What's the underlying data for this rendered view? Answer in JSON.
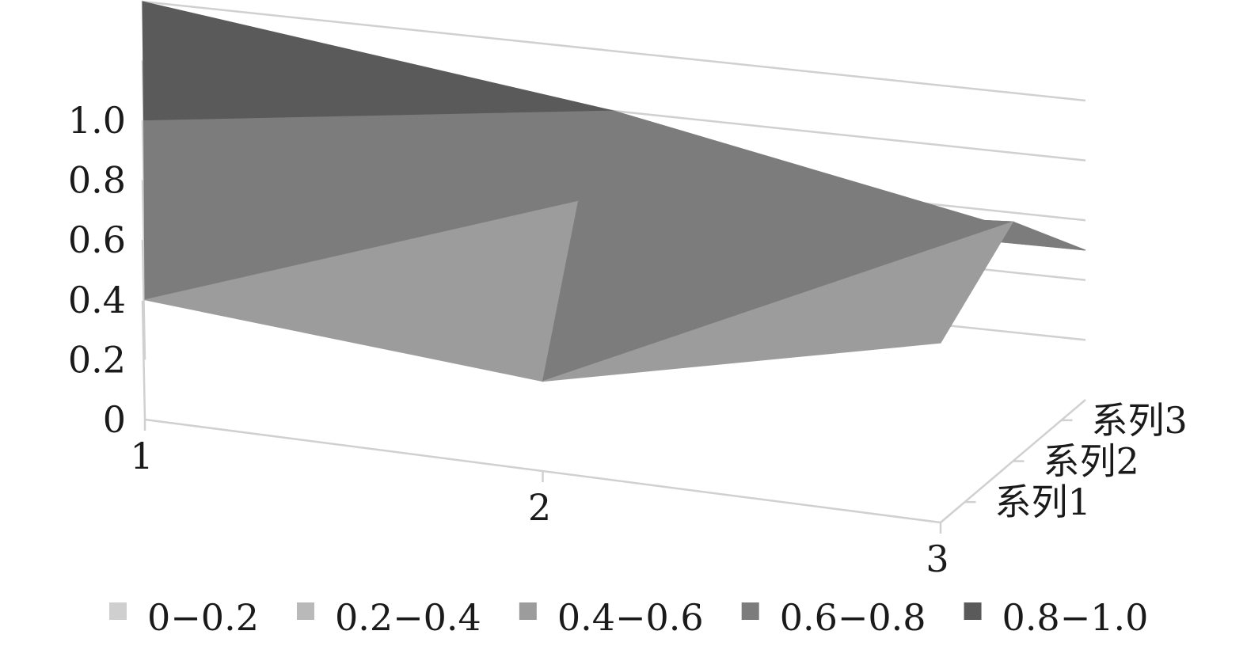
{
  "chart_data": {
    "type": "surface",
    "categories": [
      "1",
      "2",
      "3"
    ],
    "series": [
      {
        "name": "系列1",
        "values": [
          0.4,
          0.3,
          0.6
        ]
      },
      {
        "name": "系列2",
        "values": [
          0.8,
          0.7,
          0.8
        ]
      },
      {
        "name": "系列3",
        "values": [
          1.0,
          0.8,
          0.5
        ]
      }
    ],
    "zlim": [
      0,
      1.0
    ],
    "z_ticks": [
      "0",
      "0.2",
      "0.4",
      "0.6",
      "0.8",
      "1.0"
    ],
    "x_ticks": [
      "1",
      "2",
      "3"
    ],
    "y_ticks": [
      "系列1",
      "系列2",
      "系列3"
    ],
    "grid": true,
    "legend_position": "bottom",
    "legend": [
      {
        "label": "0−0.2",
        "color": "#cfcfcf"
      },
      {
        "label": "0.2−0.4",
        "color": "#b9b9b9"
      },
      {
        "label": "0.4−0.6",
        "color": "#9c9c9c"
      },
      {
        "label": "0.6−0.8",
        "color": "#7c7c7c"
      },
      {
        "label": "0.8−1.0",
        "color": "#5a5a5a"
      }
    ]
  }
}
